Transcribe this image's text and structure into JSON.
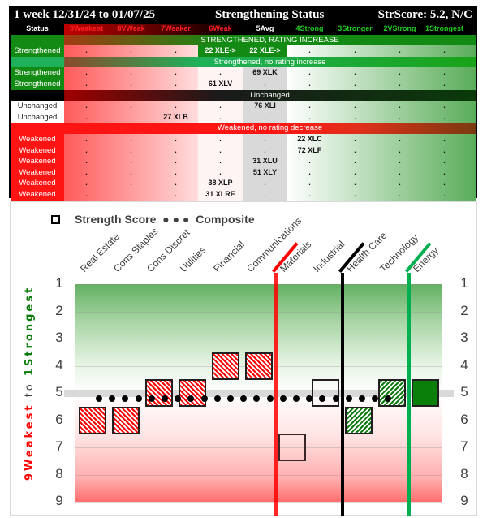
{
  "table": {
    "title_left": "1 week 12/31/24 to 01/07/25",
    "title_center": "Strengthening Status",
    "title_right": "StrScore: 5.2, N/C",
    "header": {
      "status": "Status",
      "columns": [
        "9Weakest",
        "8VWeak",
        "7Weaker",
        "6Weak",
        "5Avg",
        "4Strong",
        "3Stronger",
        "2VStrong",
        "1Strongest"
      ],
      "column_colors": [
        "#ff2020",
        "#ff2020",
        "#ff2020",
        "#ff2020",
        "#ffffff",
        "#22cc22",
        "#22cc22",
        "#22cc22",
        "#22cc22"
      ]
    },
    "bands": {
      "strengthened_increase": "STRENGTHENED, RATING INCREASE",
      "strengthened_no_increase": "Strengthened, no rating increase",
      "unchanged": "Unchanged",
      "weakened_no_decrease": "Weakened, no rating decrease"
    },
    "rows": [
      {
        "status": "Strengthened",
        "group": "si",
        "cells": [
          ".",
          ".",
          ".",
          "22 XLE->",
          "22 XLE->",
          ".",
          ".",
          ".",
          "."
        ]
      },
      {
        "status": "Strengthened",
        "group": "sn",
        "cells": [
          ".",
          ".",
          ".",
          ".",
          "69 XLK",
          ".",
          ".",
          ".",
          "."
        ]
      },
      {
        "status": "Strengthened",
        "group": "sn",
        "cells": [
          ".",
          ".",
          ".",
          "61 XLV",
          ".",
          ".",
          ".",
          ".",
          "."
        ]
      },
      {
        "status": "Unchanged",
        "group": "un",
        "cells": [
          ".",
          ".",
          ".",
          ".",
          "76 XLI",
          ".",
          ".",
          ".",
          "."
        ]
      },
      {
        "status": "Unchanged",
        "group": "un",
        "cells": [
          ".",
          ".",
          "27 XLB",
          ".",
          ".",
          ".",
          ".",
          ".",
          "."
        ]
      },
      {
        "status": "Weakened",
        "group": "wn",
        "cells": [
          ".",
          ".",
          ".",
          ".",
          ".",
          "22 XLC",
          ".",
          ".",
          "."
        ]
      },
      {
        "status": "Weakened",
        "group": "wn",
        "cells": [
          ".",
          ".",
          ".",
          ".",
          ".",
          "72 XLF",
          ".",
          ".",
          "."
        ]
      },
      {
        "status": "Weakened",
        "group": "wn",
        "cells": [
          ".",
          ".",
          ".",
          ".",
          "31 XLU",
          ".",
          ".",
          ".",
          "."
        ]
      },
      {
        "status": "Weakened",
        "group": "wn",
        "cells": [
          ".",
          ".",
          ".",
          ".",
          "51 XLY",
          ".",
          ".",
          ".",
          "."
        ]
      },
      {
        "status": "Weakened",
        "group": "wn",
        "cells": [
          ".",
          ".",
          ".",
          "38 XLP",
          ".",
          ".",
          ".",
          ".",
          "."
        ]
      },
      {
        "status": "Weakened",
        "group": "wn",
        "cells": [
          ".",
          ".",
          ".",
          "31 XLRE",
          ".",
          ".",
          ".",
          ".",
          "."
        ]
      }
    ]
  },
  "chart": {
    "legend": {
      "strength_label": "Strength Score",
      "composite_label": "Composite"
    },
    "y_title_weak": "9Weakest",
    "y_title_mid": " to ",
    "y_title_strong": "1Strongest",
    "y_ticks": [
      "1",
      "2",
      "3",
      "4",
      "5",
      "6",
      "7",
      "8",
      "9"
    ]
  },
  "chart_data": {
    "type": "scatter",
    "title": "Strength Score vs Composite",
    "xlabel": "",
    "ylabel": "9Weakest to 1Strongest",
    "ylim": [
      9,
      1
    ],
    "categories": [
      "Real Estate",
      "Cons Staples",
      "Cons Discret",
      "Utilities",
      "Financial",
      "Communications",
      "Materials",
      "Industrial",
      "Health Care",
      "Technology",
      "Energy"
    ],
    "series": [
      {
        "name": "Strength Score",
        "values": [
          6,
          6,
          5,
          5,
          4,
          4,
          7,
          5,
          6,
          5,
          5
        ],
        "styles": [
          "red-hatch",
          "red-hatch",
          "red-hatch",
          "red-hatch",
          "red-hatch",
          "red-hatch",
          "hollow",
          "hollow",
          "green-hatch",
          "green-hatch",
          "solid-green"
        ]
      },
      {
        "name": "Composite",
        "values": [
          5.2,
          5.2,
          5.2,
          5.2,
          5.2,
          5.2,
          5.2,
          5.2,
          5.2,
          5.2,
          5.2
        ],
        "style": "dotted"
      }
    ],
    "dividers": [
      {
        "after": "Communications",
        "color": "#ff0000"
      },
      {
        "after": "Industrial",
        "color": "#000000"
      },
      {
        "after": "Technology",
        "color": "#00b050"
      }
    ],
    "legend_position": "top",
    "grid": true
  }
}
